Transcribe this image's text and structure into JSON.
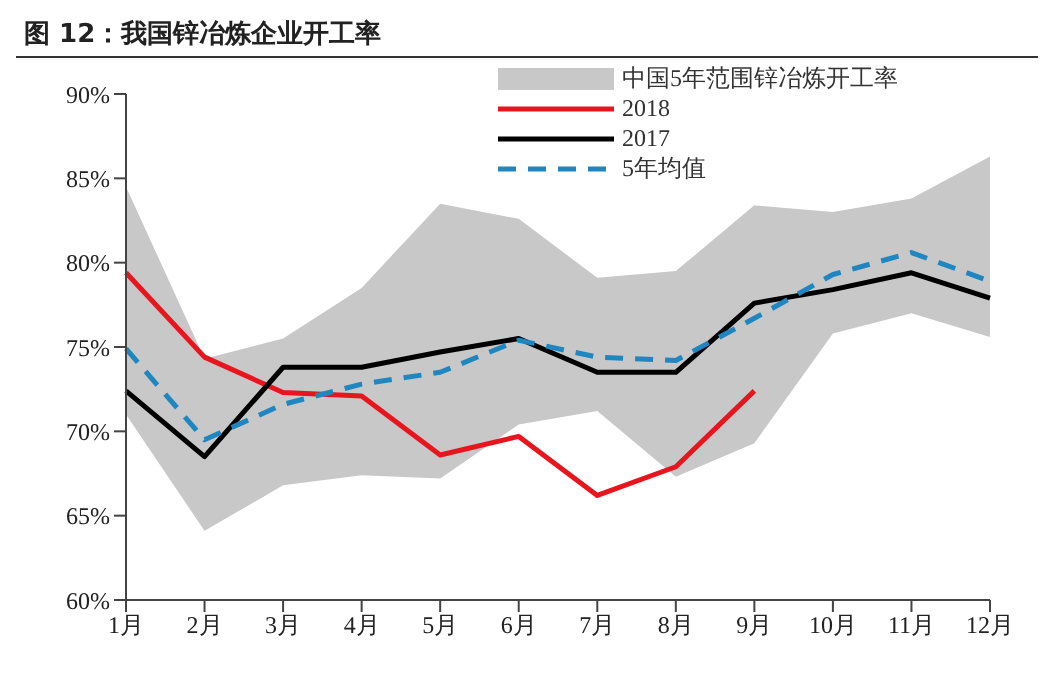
{
  "chart_data": {
    "type": "line",
    "title": "图 12：我国锌冶炼企业开工率",
    "categories": [
      "1月",
      "2月",
      "3月",
      "4月",
      "5月",
      "6月",
      "7月",
      "8月",
      "9月",
      "10月",
      "11月",
      "12月"
    ],
    "series": [
      {
        "name": "2018",
        "color": "#e8141e",
        "line_style": "solid",
        "values": [
          79.4,
          74.4,
          72.3,
          72.1,
          68.6,
          69.7,
          66.2,
          67.9,
          72.4,
          null,
          null,
          null
        ]
      },
      {
        "name": "2017",
        "color": "#000000",
        "line_style": "solid",
        "values": [
          72.4,
          68.5,
          73.8,
          73.8,
          74.7,
          75.5,
          73.5,
          73.5,
          77.6,
          78.4,
          79.4,
          77.9
        ]
      },
      {
        "name": "5年均值",
        "color": "#1f86c0",
        "line_style": "dashed",
        "values": [
          74.9,
          69.5,
          71.6,
          72.8,
          73.5,
          75.4,
          74.4,
          74.2,
          76.7,
          79.3,
          80.6,
          78.9
        ],
        "lower": [
          71.0,
          64.1,
          66.8,
          67.4,
          67.2,
          70.4,
          71.2,
          67.3,
          69.3,
          75.8,
          77.0,
          75.6
        ],
        "upper": [
          84.5,
          74.3,
          75.5,
          78.5,
          83.5,
          82.6,
          79.1,
          79.5,
          83.4,
          83.0,
          83.8,
          86.3
        ]
      }
    ],
    "annotations": [
      "中国5年范围锌冶炼开工率"
    ],
    "ylim": [
      60,
      90
    ],
    "yticks": [
      {
        "value": 60,
        "label": "60%"
      },
      {
        "value": 65,
        "label": "65%"
      },
      {
        "value": 70,
        "label": "70%"
      },
      {
        "value": 75,
        "label": "75%"
      },
      {
        "value": 80,
        "label": "80%"
      },
      {
        "value": 85,
        "label": "85%"
      },
      {
        "value": 90,
        "label": "90%"
      }
    ],
    "legend": "top right",
    "marker": "none"
  }
}
